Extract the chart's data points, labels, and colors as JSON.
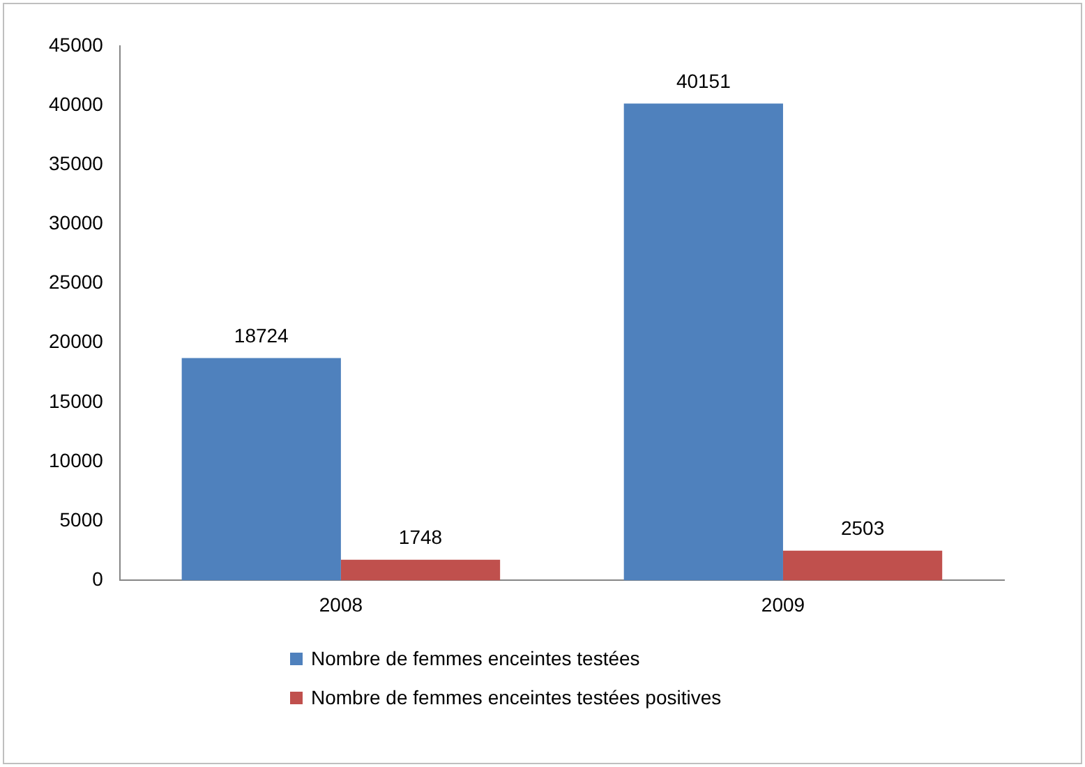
{
  "chart_data": {
    "type": "bar",
    "categories": [
      "2008",
      "2009"
    ],
    "series": [
      {
        "name": "Nombre de femmes enceintes testées",
        "color": "#4f81bd",
        "values": [
          18724,
          40151
        ]
      },
      {
        "name": "Nombre de femmes enceintes testées positives",
        "color": "#c0504d",
        "values": [
          1748,
          2503
        ]
      }
    ],
    "ylim": [
      0,
      45000
    ],
    "yticks": [
      0,
      5000,
      10000,
      15000,
      20000,
      25000,
      30000,
      35000,
      40000,
      45000
    ],
    "grid": false,
    "legend": "bottom",
    "data_labels": true
  }
}
